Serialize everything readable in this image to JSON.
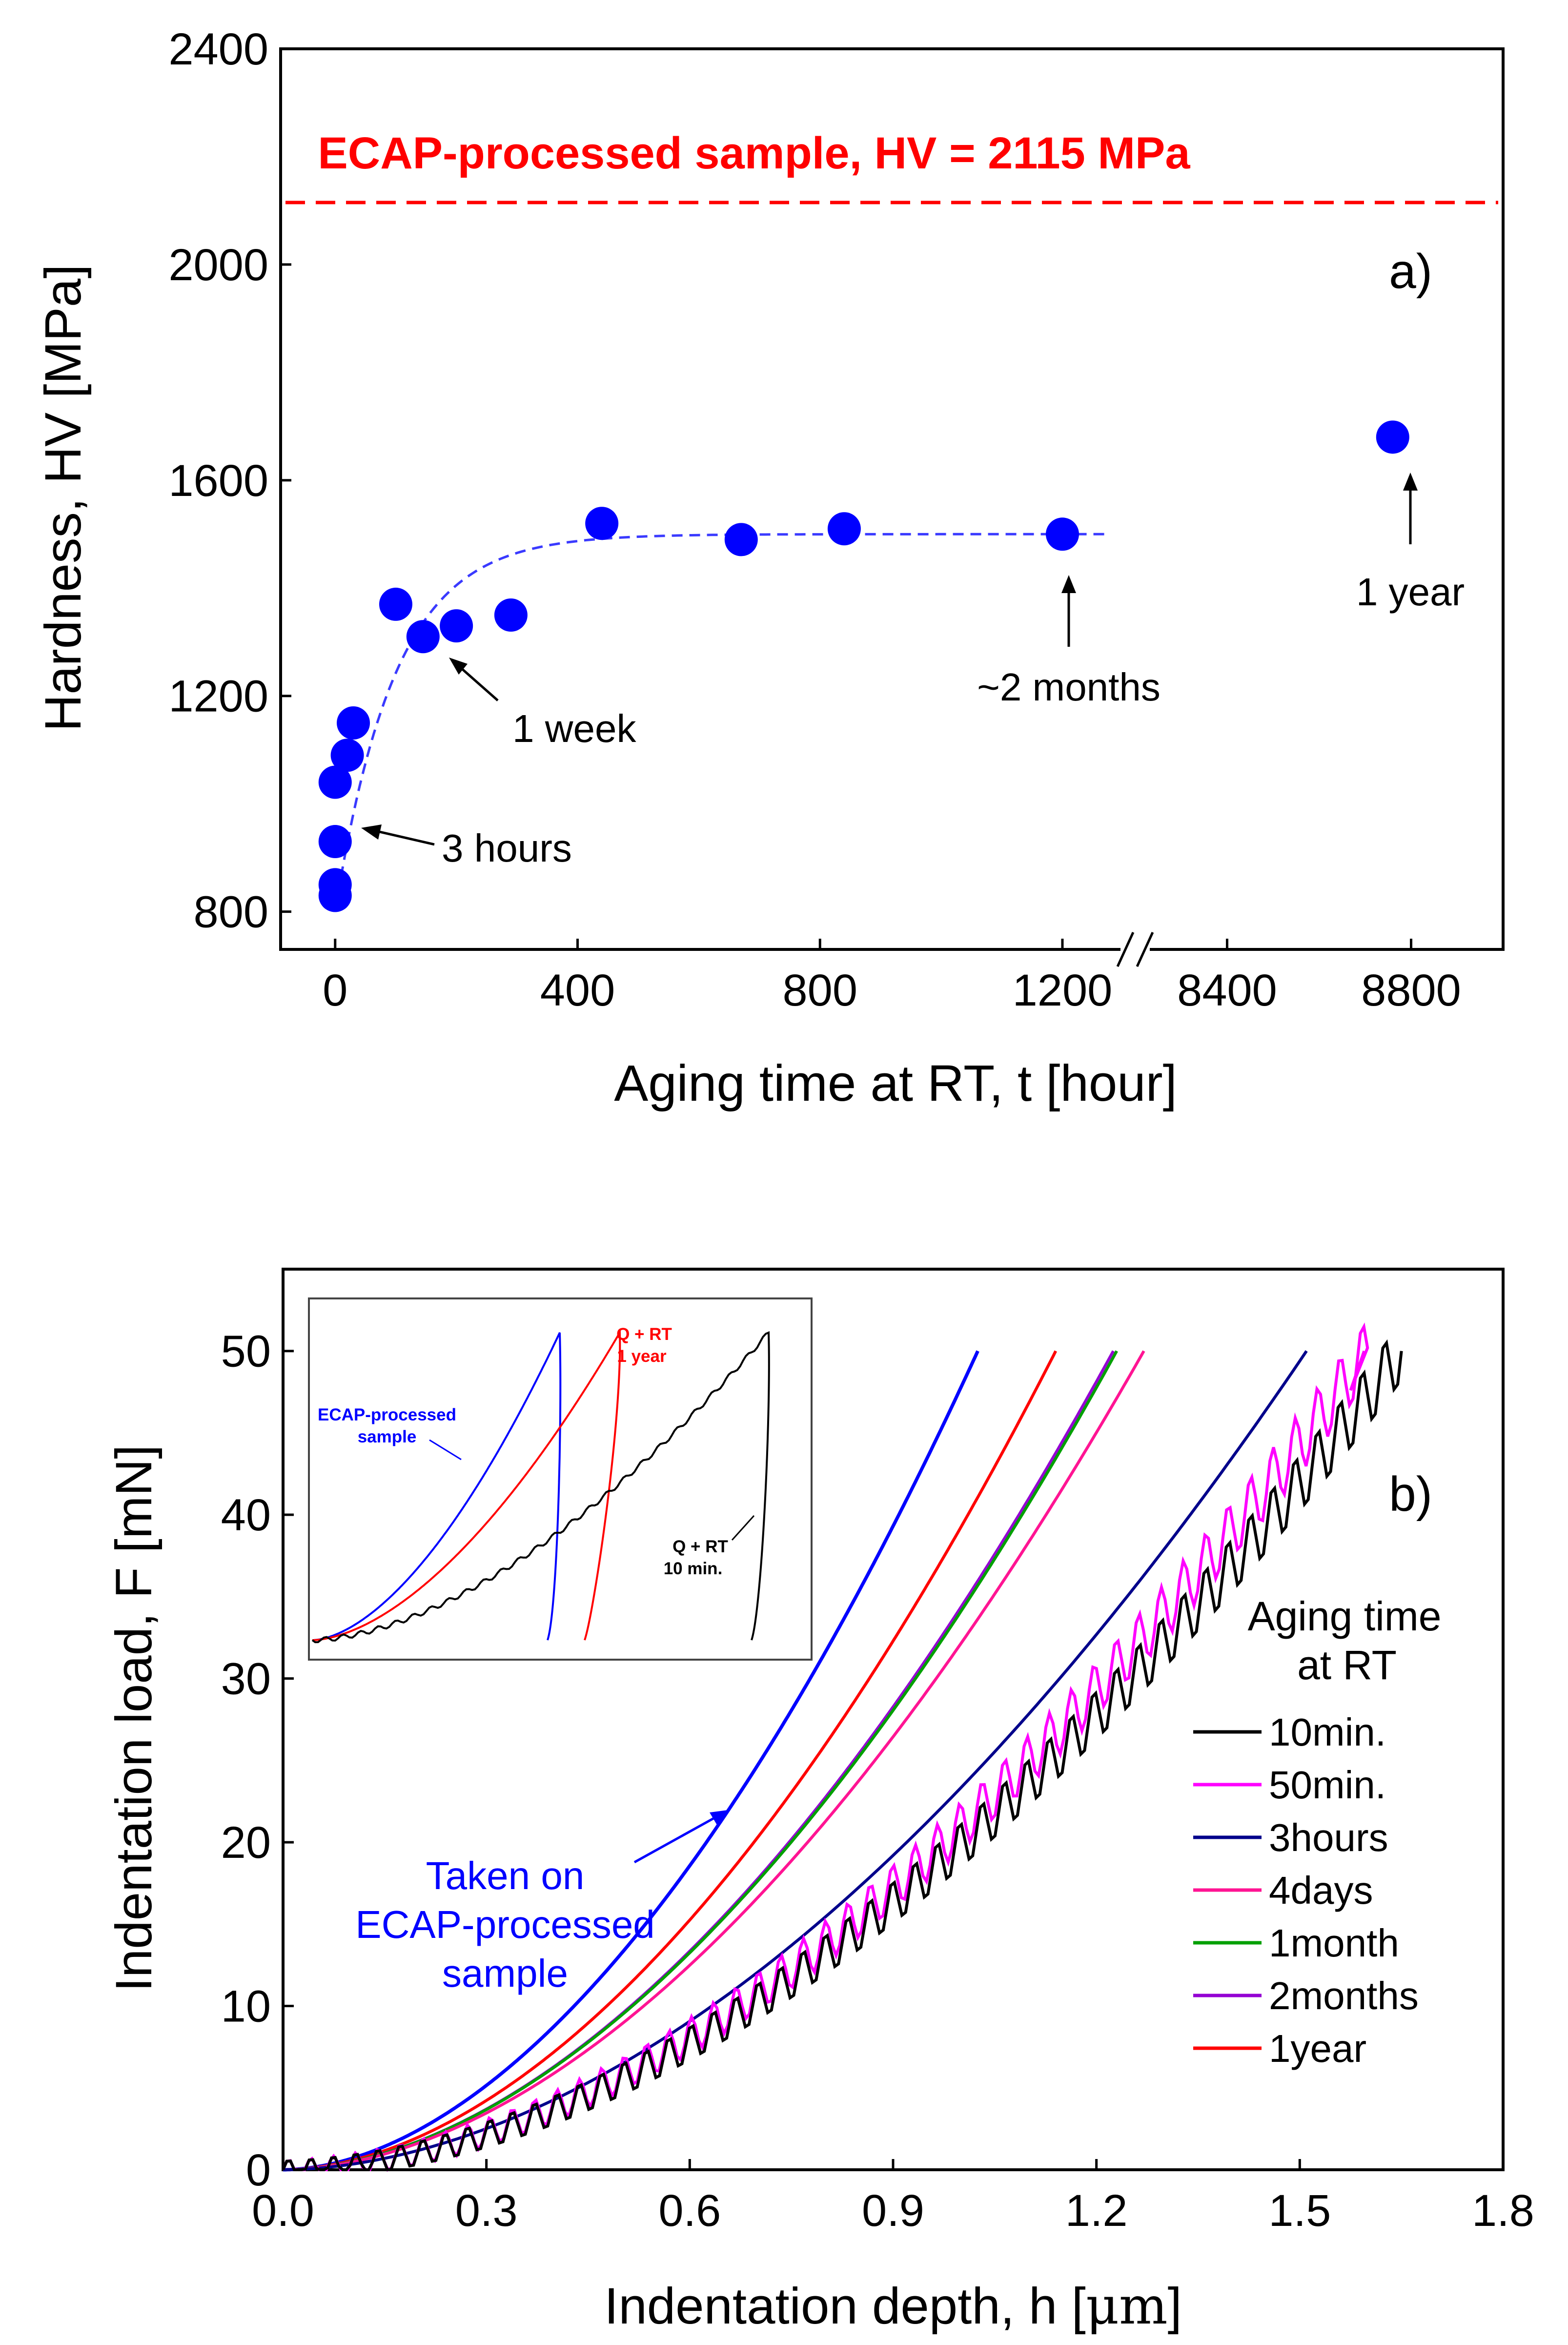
{
  "chart_data": [
    {
      "id": "a",
      "type": "scatter",
      "panel_label": "a)",
      "xlabel": "Aging time at RT, t [hour]",
      "ylabel": "Hardness, HV [MPa]",
      "xlim": [
        -90,
        1320
      ],
      "xlim_broken": [
        8200,
        9000
      ],
      "ylim": [
        730,
        2400
      ],
      "x_ticks": [
        0,
        400,
        800,
        1200
      ],
      "x_ticks_broken": [
        8400,
        8800
      ],
      "y_ticks": [
        800,
        1200,
        1600,
        2000,
        2400
      ],
      "points": [
        {
          "x": 0,
          "y": 830
        },
        {
          "x": 0,
          "y": 850
        },
        {
          "x": 0,
          "y": 930
        },
        {
          "x": 0,
          "y": 1040
        },
        {
          "x": 20,
          "y": 1090
        },
        {
          "x": 30,
          "y": 1150
        },
        {
          "x": 100,
          "y": 1370
        },
        {
          "x": 145,
          "y": 1310
        },
        {
          "x": 200,
          "y": 1330
        },
        {
          "x": 290,
          "y": 1350
        },
        {
          "x": 440,
          "y": 1520
        },
        {
          "x": 670,
          "y": 1490
        },
        {
          "x": 840,
          "y": 1510
        },
        {
          "x": 1200,
          "y": 1500
        }
      ],
      "point_broken": {
        "x": 8760,
        "y": 1680
      },
      "fit_curve": {
        "plateau": 1500,
        "base": 800,
        "tau": 100,
        "x_max": 1280
      },
      "reference_line": {
        "y": 2115,
        "label": "ECAP-processed sample, HV = 2115 MPa",
        "color": "#ff0000"
      },
      "annotations": [
        "3 hours",
        "1 week",
        "~2 months",
        "1 year"
      ],
      "point_color": "#0000ff"
    },
    {
      "id": "b",
      "type": "line",
      "panel_label": "b)",
      "xlabel_prefix": "Indentation depth, h [",
      "xlabel_unit": "μm",
      "xlabel_suffix": "]",
      "ylabel": "Indentation load, F [mN]",
      "xlim": [
        0,
        1.8
      ],
      "ylim": [
        0,
        55
      ],
      "x_ticks": [
        "0.0",
        "0.3",
        "0.6",
        "0.9",
        "1.2",
        "1.5",
        "1.8"
      ],
      "y_ticks": [
        "0",
        "10",
        "20",
        "30",
        "40",
        "50"
      ],
      "legend_title": [
        "Aging time",
        "at RT"
      ],
      "series": [
        {
          "name": "10min.",
          "color": "#000000",
          "h_max": 1.65,
          "steps": true
        },
        {
          "name": "50min.",
          "color": "#ff00ff",
          "h_max": 1.6,
          "steps": true
        },
        {
          "name": "3hours",
          "color": "#00008b",
          "h_max": 1.51
        },
        {
          "name": "4days",
          "color": "#ff1493",
          "h_max": 1.27
        },
        {
          "name": "1month",
          "color": "#00a000",
          "h_max": 1.23
        },
        {
          "name": "2months",
          "color": "#9400d3",
          "h_max": 1.225
        },
        {
          "name": "1year",
          "color": "#ff0000",
          "h_max": 1.14
        }
      ],
      "ecap_curve": {
        "color": "#0000ff",
        "h_max": 1.025,
        "label": [
          "Taken on",
          "ECAP-processed",
          "sample"
        ]
      },
      "inset": {
        "labels": {
          "ecap": [
            "ECAP-processed",
            "sample"
          ],
          "q1y": [
            "Q + RT",
            "1 year"
          ],
          "q10": [
            "Q + RT",
            "10 min."
          ]
        }
      }
    }
  ]
}
